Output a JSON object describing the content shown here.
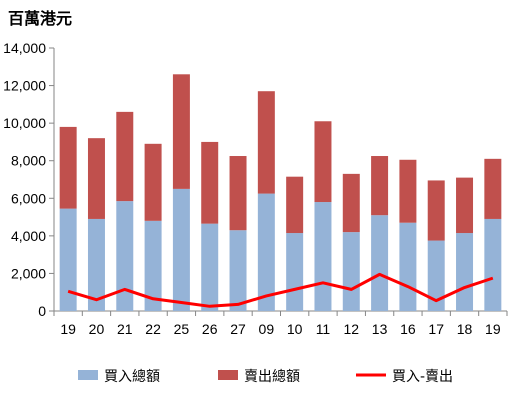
{
  "chart_data": {
    "type": "bar",
    "stacked": true,
    "title": "百萬港元",
    "categories": [
      "19",
      "20",
      "21",
      "22",
      "25",
      "26",
      "27",
      "09",
      "10",
      "11",
      "12",
      "13",
      "16",
      "17",
      "18",
      "19"
    ],
    "series": [
      {
        "name": "買入總額",
        "type": "bar",
        "color": "#95b3d7",
        "values": [
          5450,
          4900,
          5850,
          4800,
          6500,
          4650,
          4300,
          6250,
          4150,
          5800,
          4200,
          5100,
          4700,
          3750,
          4150,
          4900
        ]
      },
      {
        "name": "賣出總額",
        "type": "bar",
        "color": "#c0504d",
        "values": [
          4350,
          4300,
          4750,
          4100,
          6100,
          4350,
          3950,
          5450,
          3000,
          4300,
          3100,
          3150,
          3350,
          3200,
          2950,
          3200
        ]
      },
      {
        "name": "買入-賣出",
        "type": "line",
        "color": "#ff0000",
        "values": [
          1050,
          600,
          1150,
          650,
          450,
          250,
          350,
          800,
          1150,
          1500,
          1150,
          1950,
          1300,
          550,
          1250,
          1750
        ]
      }
    ],
    "ylim": [
      0,
      14000
    ],
    "yticks": [
      "0",
      "2,000",
      "4,000",
      "6,000",
      "8,000",
      "10,000",
      "12,000",
      "14,000"
    ],
    "grid": false,
    "legend_position": "bottom"
  }
}
